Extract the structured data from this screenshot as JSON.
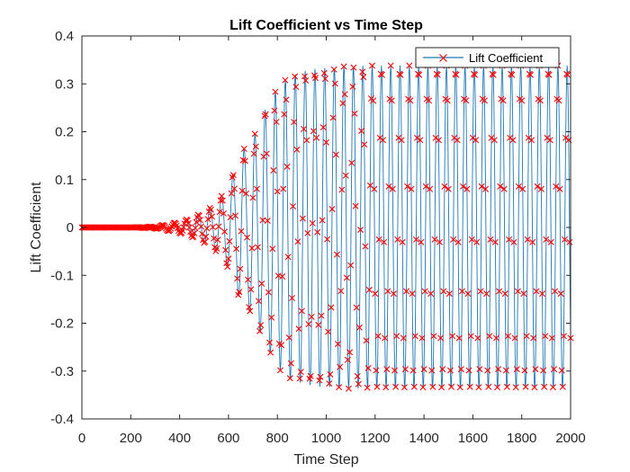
{
  "chart_data": {
    "type": "line",
    "title": "Lift Coefficient vs Time Step",
    "xlabel": "Time Step",
    "ylabel": "Lift Coefficient",
    "xlim": [
      0,
      2000
    ],
    "ylim": [
      -0.4,
      0.4
    ],
    "xticks": [
      0,
      200,
      400,
      600,
      800,
      1000,
      1200,
      1400,
      1600,
      1800,
      2000
    ],
    "yticks": [
      -0.4,
      -0.3,
      -0.2,
      -0.1,
      0,
      0.1,
      0.2,
      0.3,
      0.4
    ],
    "xtick_labels": [
      "0",
      "200",
      "400",
      "600",
      "800",
      "1000",
      "1200",
      "1400",
      "1600",
      "1800",
      "2000"
    ],
    "ytick_labels": [
      "-0.4",
      "-0.3",
      "-0.2",
      "-0.1",
      "0",
      "0.1",
      "0.2",
      "0.3",
      "0.4"
    ],
    "grid": false,
    "legend_position": "top-right",
    "line_color": "#1f77b4",
    "marker_color": "#ff0000",
    "marker": "x",
    "series": [
      {
        "name": "Lift Coefficient",
        "x": [
          0,
          100,
          200,
          300,
          350,
          400,
          450,
          500,
          550,
          600,
          650,
          700,
          750,
          800,
          850,
          900,
          950,
          1000,
          1050,
          1100,
          1150,
          1200,
          1250,
          1300,
          1350,
          1400,
          1450,
          1500,
          1550,
          1600,
          1650,
          1700,
          1750,
          1800,
          1850,
          1900,
          1950,
          2000
        ],
        "y": [
          0,
          0,
          0,
          0.002,
          0.007,
          0.012,
          0.02,
          0.032,
          0.05,
          0.086,
          0.156,
          0.186,
          0.246,
          0.292,
          0.318,
          0.326,
          0.331,
          0.334,
          0.336,
          0.337,
          0.338,
          0.338,
          0.338,
          0.338,
          0.338,
          0.338,
          0.338,
          0.338,
          0.338,
          0.338,
          0.338,
          0.338,
          0.338,
          0.338,
          0.338,
          0.338,
          0.338,
          0.338
        ]
      }
    ]
  }
}
